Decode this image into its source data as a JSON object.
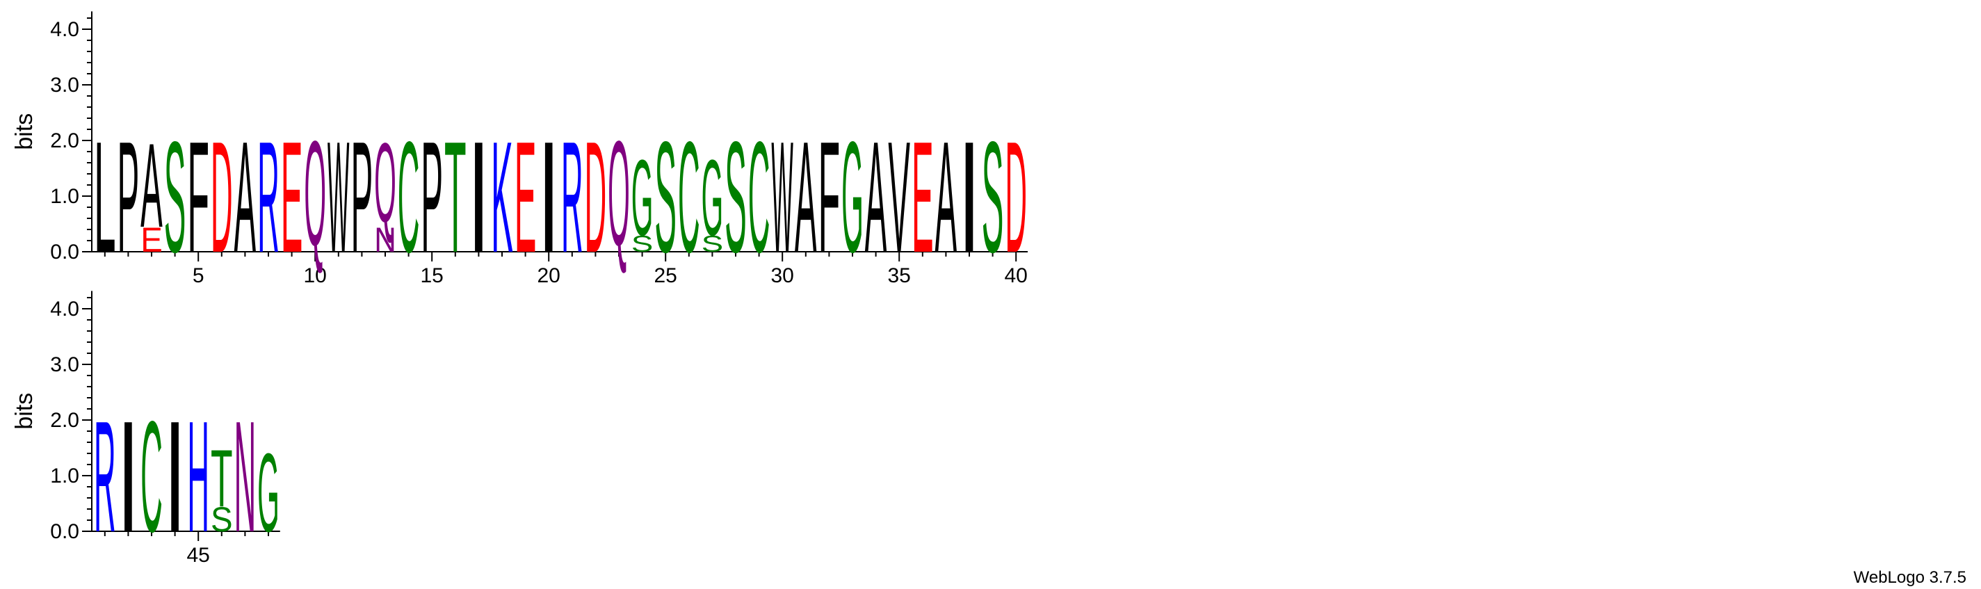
{
  "chart_data": {
    "type": "sequence-logo",
    "ylabel": "bits",
    "ylim": [
      0,
      4.32
    ],
    "y_ticks": [
      "0.0",
      "1.0",
      "2.0",
      "3.0",
      "4.0"
    ],
    "x_tick_labels": [
      "5",
      "10",
      "15",
      "20",
      "25",
      "30",
      "35",
      "40",
      "45"
    ],
    "colors": {
      "black": "#000000",
      "red": "#ff0000",
      "blue": "#0000ff",
      "green": "#008000",
      "purple": "#800080"
    },
    "positions": [
      {
        "pos": 1,
        "letters": [
          {
            "l": "L",
            "h": 2.05,
            "c": "black"
          }
        ]
      },
      {
        "pos": 2,
        "letters": [
          {
            "l": "P",
            "h": 2.05,
            "c": "black"
          }
        ]
      },
      {
        "pos": 3,
        "letters": [
          {
            "l": "E",
            "h": 0.45,
            "c": "red"
          },
          {
            "l": "A",
            "h": 1.55,
            "c": "black"
          }
        ]
      },
      {
        "pos": 4,
        "letters": [
          {
            "l": "S",
            "h": 2.05,
            "c": "green"
          }
        ]
      },
      {
        "pos": 5,
        "letters": [
          {
            "l": "F",
            "h": 2.05,
            "c": "black"
          }
        ]
      },
      {
        "pos": 6,
        "letters": [
          {
            "l": "D",
            "h": 2.05,
            "c": "red"
          }
        ]
      },
      {
        "pos": 7,
        "letters": [
          {
            "l": "A",
            "h": 2.05,
            "c": "black"
          }
        ]
      },
      {
        "pos": 8,
        "letters": [
          {
            "l": "R",
            "h": 2.05,
            "c": "blue"
          }
        ]
      },
      {
        "pos": 9,
        "letters": [
          {
            "l": "E",
            "h": 2.05,
            "c": "red"
          }
        ]
      },
      {
        "pos": 10,
        "letters": [
          {
            "l": "Q",
            "h": 2.05,
            "c": "purple"
          }
        ]
      },
      {
        "pos": 11,
        "letters": [
          {
            "l": "W",
            "h": 2.05,
            "c": "black"
          }
        ]
      },
      {
        "pos": 12,
        "letters": [
          {
            "l": "P",
            "h": 2.05,
            "c": "black"
          }
        ]
      },
      {
        "pos": 13,
        "letters": [
          {
            "l": "N",
            "h": 0.45,
            "c": "purple"
          },
          {
            "l": "Q",
            "h": 1.55,
            "c": "purple"
          }
        ]
      },
      {
        "pos": 14,
        "letters": [
          {
            "l": "C",
            "h": 2.05,
            "c": "green"
          }
        ]
      },
      {
        "pos": 15,
        "letters": [
          {
            "l": "P",
            "h": 2.05,
            "c": "black"
          }
        ]
      },
      {
        "pos": 16,
        "letters": [
          {
            "l": "T",
            "h": 2.05,
            "c": "green"
          }
        ]
      },
      {
        "pos": 17,
        "letters": [
          {
            "l": "I",
            "h": 2.05,
            "c": "black"
          }
        ]
      },
      {
        "pos": 18,
        "letters": [
          {
            "l": "K",
            "h": 2.05,
            "c": "blue"
          }
        ]
      },
      {
        "pos": 19,
        "letters": [
          {
            "l": "E",
            "h": 2.05,
            "c": "red"
          }
        ]
      },
      {
        "pos": 20,
        "letters": [
          {
            "l": "I",
            "h": 2.05,
            "c": "black"
          }
        ]
      },
      {
        "pos": 21,
        "letters": [
          {
            "l": "R",
            "h": 2.05,
            "c": "blue"
          }
        ]
      },
      {
        "pos": 22,
        "letters": [
          {
            "l": "D",
            "h": 2.05,
            "c": "red"
          }
        ]
      },
      {
        "pos": 23,
        "letters": [
          {
            "l": "Q",
            "h": 2.05,
            "c": "purple"
          }
        ]
      },
      {
        "pos": 24,
        "letters": [
          {
            "l": "S",
            "h": 0.3,
            "c": "green"
          },
          {
            "l": "G",
            "h": 1.4,
            "c": "green"
          }
        ]
      },
      {
        "pos": 25,
        "letters": [
          {
            "l": "S",
            "h": 2.05,
            "c": "green"
          }
        ]
      },
      {
        "pos": 26,
        "letters": [
          {
            "l": "C",
            "h": 2.05,
            "c": "green"
          }
        ]
      },
      {
        "pos": 27,
        "letters": [
          {
            "l": "S",
            "h": 0.3,
            "c": "green"
          },
          {
            "l": "G",
            "h": 1.4,
            "c": "green"
          }
        ]
      },
      {
        "pos": 28,
        "letters": [
          {
            "l": "S",
            "h": 2.05,
            "c": "green"
          }
        ]
      },
      {
        "pos": 29,
        "letters": [
          {
            "l": "C",
            "h": 2.05,
            "c": "green"
          }
        ]
      },
      {
        "pos": 30,
        "letters": [
          {
            "l": "W",
            "h": 2.05,
            "c": "black"
          }
        ]
      },
      {
        "pos": 31,
        "letters": [
          {
            "l": "A",
            "h": 2.05,
            "c": "black"
          }
        ]
      },
      {
        "pos": 32,
        "letters": [
          {
            "l": "F",
            "h": 2.05,
            "c": "black"
          }
        ]
      },
      {
        "pos": 33,
        "letters": [
          {
            "l": "G",
            "h": 2.05,
            "c": "green"
          }
        ]
      },
      {
        "pos": 34,
        "letters": [
          {
            "l": "A",
            "h": 2.05,
            "c": "black"
          }
        ]
      },
      {
        "pos": 35,
        "letters": [
          {
            "l": "V",
            "h": 2.05,
            "c": "black"
          }
        ]
      },
      {
        "pos": 36,
        "letters": [
          {
            "l": "E",
            "h": 2.05,
            "c": "red"
          }
        ]
      },
      {
        "pos": 37,
        "letters": [
          {
            "l": "A",
            "h": 2.05,
            "c": "black"
          }
        ]
      },
      {
        "pos": 38,
        "letters": [
          {
            "l": "I",
            "h": 2.05,
            "c": "black"
          }
        ]
      },
      {
        "pos": 39,
        "letters": [
          {
            "l": "S",
            "h": 2.05,
            "c": "green"
          }
        ]
      },
      {
        "pos": 40,
        "letters": [
          {
            "l": "D",
            "h": 2.05,
            "c": "red"
          }
        ]
      },
      {
        "pos": 41,
        "letters": [
          {
            "l": "R",
            "h": 2.05,
            "c": "blue"
          }
        ]
      },
      {
        "pos": 42,
        "letters": [
          {
            "l": "I",
            "h": 2.05,
            "c": "black"
          }
        ]
      },
      {
        "pos": 43,
        "letters": [
          {
            "l": "C",
            "h": 2.05,
            "c": "green"
          }
        ]
      },
      {
        "pos": 44,
        "letters": [
          {
            "l": "I",
            "h": 2.05,
            "c": "black"
          }
        ]
      },
      {
        "pos": 45,
        "letters": [
          {
            "l": "H",
            "h": 2.05,
            "c": "blue"
          }
        ]
      },
      {
        "pos": 46,
        "letters": [
          {
            "l": "S",
            "h": 0.45,
            "c": "green"
          },
          {
            "l": "T",
            "h": 1.05,
            "c": "green"
          }
        ]
      },
      {
        "pos": 47,
        "letters": [
          {
            "l": "N",
            "h": 2.05,
            "c": "purple"
          }
        ]
      },
      {
        "pos": 48,
        "letters": [
          {
            "l": "G",
            "h": 1.45,
            "c": "green"
          }
        ]
      }
    ]
  },
  "footer": {
    "credit": "WebLogo 3.7.5"
  }
}
